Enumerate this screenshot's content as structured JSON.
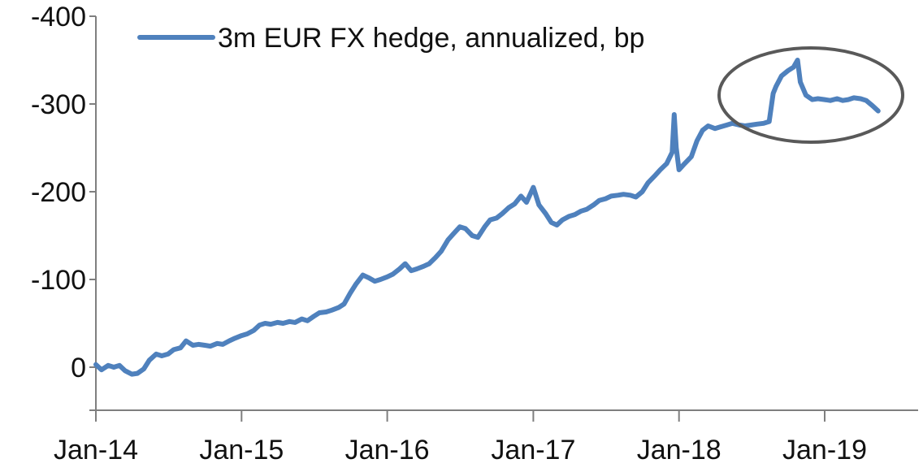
{
  "chart_data": {
    "type": "line",
    "title": "",
    "xlabel": "",
    "ylabel": "",
    "y_inverted": true,
    "ylim": [
      0,
      -400
    ],
    "y_axis_min": 60,
    "y_ticks": [
      "-400",
      "-300",
      "-200",
      "-100",
      "0"
    ],
    "x_ticks": [
      "Jan-14",
      "Jan-15",
      "Jan-16",
      "Jan-17",
      "Jan-18",
      "Jan-19"
    ],
    "xlim": [
      "2014-01-01",
      "2019-06-01"
    ],
    "legend_position": "top-left",
    "series": [
      {
        "name": "3m EUR FX hedge, annualized, bp",
        "color": "#4F81BD",
        "points": [
          [
            "2014-01-01",
            -3
          ],
          [
            "2014-01-15",
            3
          ],
          [
            "2014-02-01",
            -2
          ],
          [
            "2014-02-15",
            0
          ],
          [
            "2014-03-01",
            -2
          ],
          [
            "2014-03-15",
            4
          ],
          [
            "2014-04-01",
            8
          ],
          [
            "2014-04-15",
            7
          ],
          [
            "2014-05-01",
            2
          ],
          [
            "2014-05-15",
            -8
          ],
          [
            "2014-06-01",
            -15
          ],
          [
            "2014-06-15",
            -13
          ],
          [
            "2014-07-01",
            -15
          ],
          [
            "2014-07-15",
            -20
          ],
          [
            "2014-08-01",
            -22
          ],
          [
            "2014-08-15",
            -30
          ],
          [
            "2014-09-01",
            -25
          ],
          [
            "2014-09-15",
            -26
          ],
          [
            "2014-10-01",
            -25
          ],
          [
            "2014-10-15",
            -24
          ],
          [
            "2014-11-01",
            -27
          ],
          [
            "2014-11-15",
            -26
          ],
          [
            "2014-12-01",
            -30
          ],
          [
            "2014-12-15",
            -33
          ],
          [
            "2015-01-01",
            -36
          ],
          [
            "2015-01-15",
            -38
          ],
          [
            "2015-02-01",
            -42
          ],
          [
            "2015-02-15",
            -48
          ],
          [
            "2015-03-01",
            -50
          ],
          [
            "2015-03-15",
            -49
          ],
          [
            "2015-04-01",
            -51
          ],
          [
            "2015-04-15",
            -50
          ],
          [
            "2015-05-01",
            -52
          ],
          [
            "2015-05-15",
            -51
          ],
          [
            "2015-06-01",
            -55
          ],
          [
            "2015-06-15",
            -53
          ],
          [
            "2015-07-01",
            -58
          ],
          [
            "2015-07-15",
            -62
          ],
          [
            "2015-08-01",
            -63
          ],
          [
            "2015-08-15",
            -65
          ],
          [
            "2015-09-01",
            -68
          ],
          [
            "2015-09-15",
            -72
          ],
          [
            "2015-10-01",
            -85
          ],
          [
            "2015-10-15",
            -95
          ],
          [
            "2015-11-01",
            -105
          ],
          [
            "2015-11-15",
            -102
          ],
          [
            "2015-12-01",
            -98
          ],
          [
            "2015-12-15",
            -100
          ],
          [
            "2016-01-01",
            -103
          ],
          [
            "2016-01-15",
            -106
          ],
          [
            "2016-02-01",
            -112
          ],
          [
            "2016-02-15",
            -118
          ],
          [
            "2016-03-01",
            -110
          ],
          [
            "2016-03-15",
            -112
          ],
          [
            "2016-04-01",
            -115
          ],
          [
            "2016-04-15",
            -118
          ],
          [
            "2016-05-01",
            -125
          ],
          [
            "2016-05-15",
            -132
          ],
          [
            "2016-06-01",
            -145
          ],
          [
            "2016-06-15",
            -152
          ],
          [
            "2016-07-01",
            -160
          ],
          [
            "2016-07-15",
            -158
          ],
          [
            "2016-08-01",
            -150
          ],
          [
            "2016-08-15",
            -148
          ],
          [
            "2016-09-01",
            -160
          ],
          [
            "2016-09-15",
            -168
          ],
          [
            "2016-10-01",
            -170
          ],
          [
            "2016-10-15",
            -175
          ],
          [
            "2016-11-01",
            -182
          ],
          [
            "2016-11-15",
            -186
          ],
          [
            "2016-12-01",
            -195
          ],
          [
            "2016-12-15",
            -188
          ],
          [
            "2017-01-01",
            -205
          ],
          [
            "2017-01-15",
            -185
          ],
          [
            "2017-02-01",
            -175
          ],
          [
            "2017-02-15",
            -165
          ],
          [
            "2017-03-01",
            -162
          ],
          [
            "2017-03-15",
            -168
          ],
          [
            "2017-04-01",
            -172
          ],
          [
            "2017-04-15",
            -174
          ],
          [
            "2017-05-01",
            -178
          ],
          [
            "2017-05-15",
            -180
          ],
          [
            "2017-06-01",
            -185
          ],
          [
            "2017-06-15",
            -190
          ],
          [
            "2017-07-01",
            -192
          ],
          [
            "2017-07-15",
            -195
          ],
          [
            "2017-08-01",
            -196
          ],
          [
            "2017-08-15",
            -197
          ],
          [
            "2017-09-01",
            -196
          ],
          [
            "2017-09-15",
            -194
          ],
          [
            "2017-10-01",
            -200
          ],
          [
            "2017-10-15",
            -210
          ],
          [
            "2017-11-01",
            -218
          ],
          [
            "2017-11-15",
            -225
          ],
          [
            "2017-12-01",
            -232
          ],
          [
            "2017-12-15",
            -245
          ],
          [
            "2017-12-20",
            -288
          ],
          [
            "2017-12-25",
            -250
          ],
          [
            "2018-01-01",
            -225
          ],
          [
            "2018-01-15",
            -232
          ],
          [
            "2018-02-01",
            -240
          ],
          [
            "2018-02-15",
            -258
          ],
          [
            "2018-03-01",
            -270
          ],
          [
            "2018-03-15",
            -275
          ],
          [
            "2018-04-01",
            -272
          ],
          [
            "2018-04-15",
            -274
          ],
          [
            "2018-05-01",
            -276
          ],
          [
            "2018-05-15",
            -278
          ],
          [
            "2018-06-01",
            -276
          ],
          [
            "2018-06-15",
            -275
          ],
          [
            "2018-07-01",
            -276
          ],
          [
            "2018-07-15",
            -277
          ],
          [
            "2018-08-01",
            -278
          ],
          [
            "2018-08-15",
            -280
          ],
          [
            "2018-08-25",
            -312
          ],
          [
            "2018-09-01",
            -320
          ],
          [
            "2018-09-15",
            -332
          ],
          [
            "2018-10-01",
            -338
          ],
          [
            "2018-10-15",
            -342
          ],
          [
            "2018-10-25",
            -350
          ],
          [
            "2018-11-01",
            -325
          ],
          [
            "2018-11-15",
            -310
          ],
          [
            "2018-12-01",
            -305
          ],
          [
            "2018-12-15",
            -306
          ],
          [
            "2019-01-01",
            -305
          ],
          [
            "2019-01-15",
            -304
          ],
          [
            "2019-02-01",
            -306
          ],
          [
            "2019-02-15",
            -304
          ],
          [
            "2019-03-01",
            -305
          ],
          [
            "2019-03-15",
            -307
          ],
          [
            "2019-04-01",
            -306
          ],
          [
            "2019-04-15",
            -304
          ],
          [
            "2019-05-01",
            -298
          ],
          [
            "2019-05-15",
            -292
          ]
        ]
      }
    ],
    "annotations": [
      {
        "type": "ellipse",
        "color": "#595959",
        "x_center": "2018-11-10",
        "y_center": -306
      }
    ]
  }
}
